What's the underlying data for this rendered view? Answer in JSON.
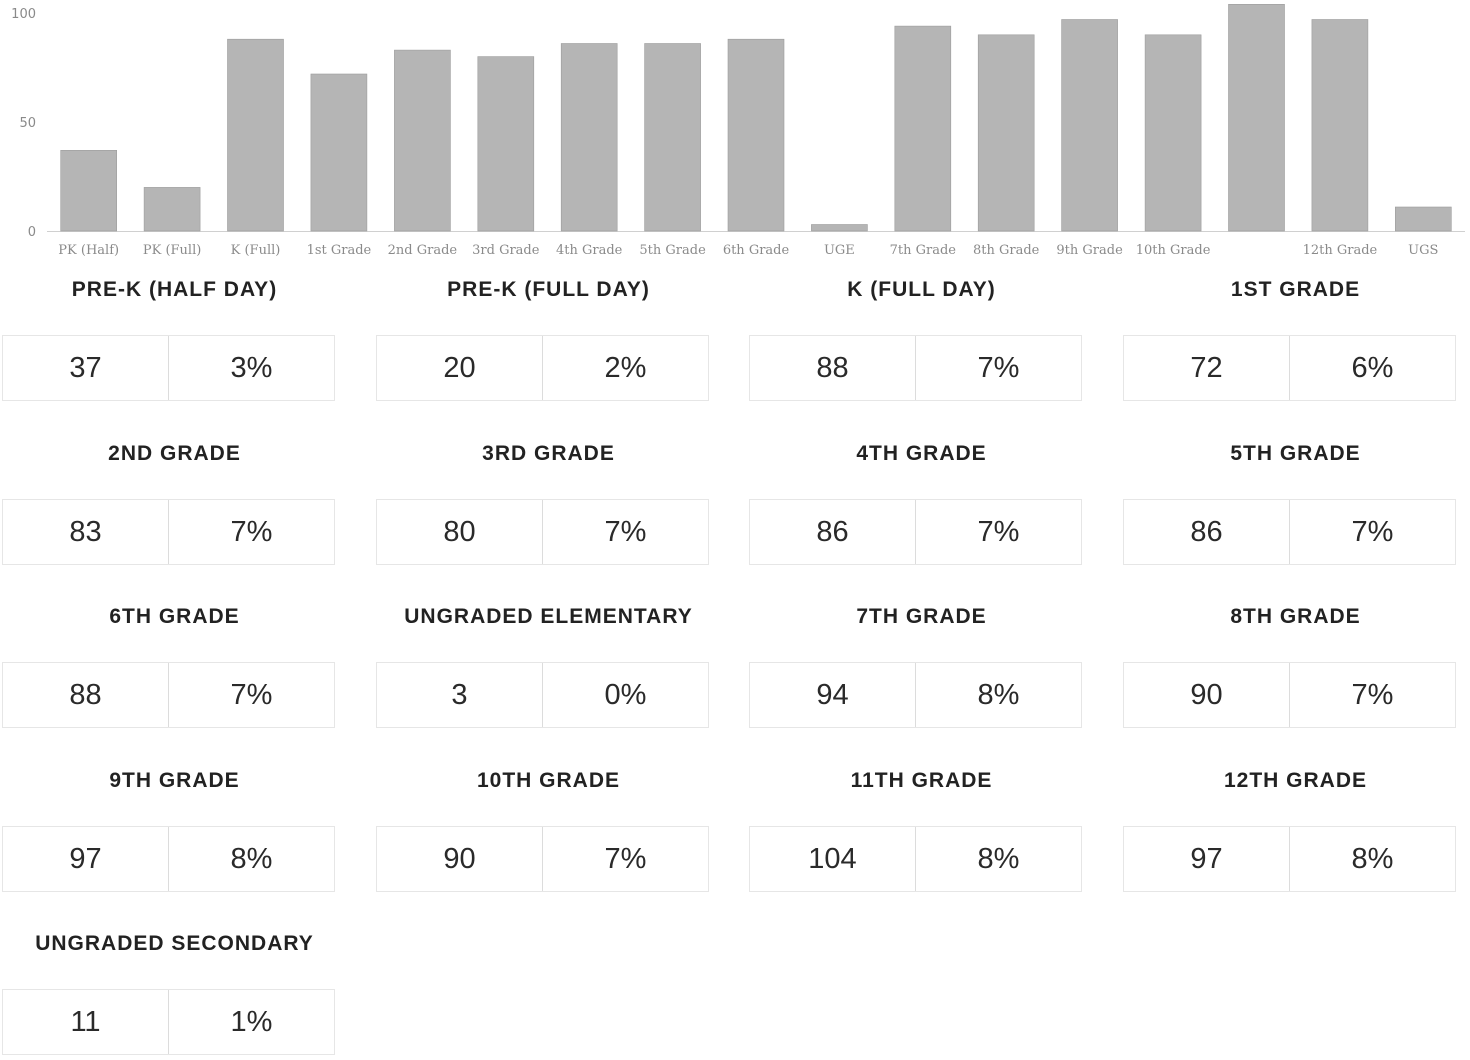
{
  "chart_data": {
    "type": "bar",
    "categories": [
      "PK (Half)",
      "PK (Full)",
      "K (Full)",
      "1st Grade",
      "2nd Grade",
      "3rd Grade",
      "4th Grade",
      "5th Grade",
      "6th Grade",
      "UGE",
      "7th Grade",
      "8th Grade",
      "9th Grade",
      "10th Grade",
      "",
      "12th Grade",
      "UGS"
    ],
    "values": [
      37,
      20,
      88,
      72,
      83,
      80,
      86,
      86,
      88,
      3,
      94,
      90,
      97,
      90,
      104,
      97,
      11
    ],
    "yticks": [
      0,
      50,
      100
    ],
    "ylim": [
      0,
      105
    ],
    "grid": false,
    "bar_color": "#b5b5b5"
  },
  "stats": [
    {
      "title": "PRE-K (HALF DAY)",
      "count": "37",
      "percent": "3%"
    },
    {
      "title": "PRE-K (FULL DAY)",
      "count": "20",
      "percent": "2%"
    },
    {
      "title": "K (FULL DAY)",
      "count": "88",
      "percent": "7%"
    },
    {
      "title": "1ST GRADE",
      "count": "72",
      "percent": "6%"
    },
    {
      "title": "2ND GRADE",
      "count": "83",
      "percent": "7%"
    },
    {
      "title": "3RD GRADE",
      "count": "80",
      "percent": "7%"
    },
    {
      "title": "4TH GRADE",
      "count": "86",
      "percent": "7%"
    },
    {
      "title": "5TH GRADE",
      "count": "86",
      "percent": "7%"
    },
    {
      "title": "6TH GRADE",
      "count": "88",
      "percent": "7%"
    },
    {
      "title": "UNGRADED ELEMENTARY",
      "count": "3",
      "percent": "0%"
    },
    {
      "title": "7TH GRADE",
      "count": "94",
      "percent": "8%"
    },
    {
      "title": "8TH GRADE",
      "count": "90",
      "percent": "7%"
    },
    {
      "title": "9TH GRADE",
      "count": "97",
      "percent": "8%"
    },
    {
      "title": "10TH GRADE",
      "count": "90",
      "percent": "7%"
    },
    {
      "title": "11TH GRADE",
      "count": "104",
      "percent": "8%"
    },
    {
      "title": "12TH GRADE",
      "count": "97",
      "percent": "8%"
    },
    {
      "title": "UNGRADED SECONDARY",
      "count": "11",
      "percent": "1%"
    }
  ]
}
